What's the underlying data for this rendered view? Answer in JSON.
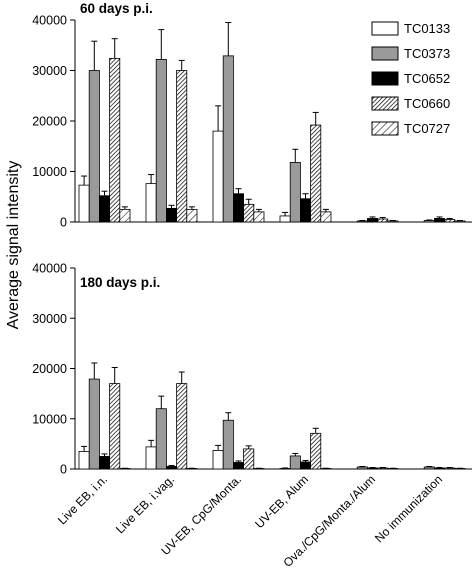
{
  "chart_data": {
    "type": "bar",
    "ylabel": "Average signal intensity",
    "ylim": [
      0,
      40000
    ],
    "yticks": [
      0,
      10000,
      20000,
      30000,
      40000
    ],
    "categories": [
      "Live EB, i.n.",
      "Live EB, i.vag.",
      "UV-EB, CpG/Monta.",
      "UV-EB, Alum",
      "Ova./CpG/Monta./Alum",
      "No immunization"
    ],
    "legend": {
      "position": "top-right",
      "entries": [
        {
          "name": "TC0133",
          "fill": "#ffffff",
          "pattern": "none"
        },
        {
          "name": "TC0373",
          "fill": "#9a9a9a",
          "pattern": "none"
        },
        {
          "name": "TC0652",
          "fill": "#000000",
          "pattern": "none"
        },
        {
          "name": "TC0660",
          "fill": "#ffffff",
          "pattern": "dense-hatch"
        },
        {
          "name": "TC0727",
          "fill": "#ffffff",
          "pattern": "sparse-hatch"
        }
      ]
    },
    "panels": [
      {
        "title": "60 days p.i.",
        "series": [
          {
            "name": "TC0133",
            "values": [
              7300,
              7600,
              18000,
              1200,
              0,
              0
            ],
            "errors": [
              1800,
              1800,
              5000,
              700,
              0,
              0
            ]
          },
          {
            "name": "TC0373",
            "values": [
              30000,
              32200,
              32900,
              11800,
              200,
              300
            ],
            "errors": [
              5800,
              5900,
              6600,
              2600,
              100,
              100
            ]
          },
          {
            "name": "TC0652",
            "values": [
              5200,
              2700,
              5600,
              4600,
              700,
              700
            ],
            "errors": [
              900,
              600,
              1000,
              1000,
              300,
              300
            ]
          },
          {
            "name": "TC0660",
            "values": [
              32400,
              30000,
              3500,
              19200,
              600,
              500
            ],
            "errors": [
              3900,
              2000,
              1000,
              2500,
              300,
              200
            ]
          },
          {
            "name": "TC0727",
            "values": [
              2500,
              2500,
              2000,
              2000,
              200,
              200
            ],
            "errors": [
              500,
              500,
              500,
              500,
              100,
              100
            ]
          }
        ]
      },
      {
        "title": "180 days p.i.",
        "series": [
          {
            "name": "TC0133",
            "values": [
              3500,
              4400,
              3700,
              100,
              0,
              0
            ],
            "errors": [
              1000,
              1300,
              1000,
              100,
              0,
              0
            ]
          },
          {
            "name": "TC0373",
            "values": [
              17900,
              12000,
              9700,
              2600,
              400,
              400
            ],
            "errors": [
              3200,
              2500,
              1500,
              500,
              100,
              100
            ]
          },
          {
            "name": "TC0652",
            "values": [
              2500,
              500,
              1300,
              1400,
              200,
              200
            ],
            "errors": [
              500,
              200,
              300,
              300,
              100,
              100
            ]
          },
          {
            "name": "TC0660",
            "values": [
              17000,
              17000,
              4000,
              7100,
              200,
              200
            ],
            "errors": [
              3200,
              2300,
              600,
              1000,
              100,
              100
            ]
          },
          {
            "name": "TC0727",
            "values": [
              100,
              100,
              100,
              100,
              100,
              100
            ],
            "errors": [
              50,
              50,
              50,
              50,
              50,
              50
            ]
          }
        ]
      }
    ]
  }
}
